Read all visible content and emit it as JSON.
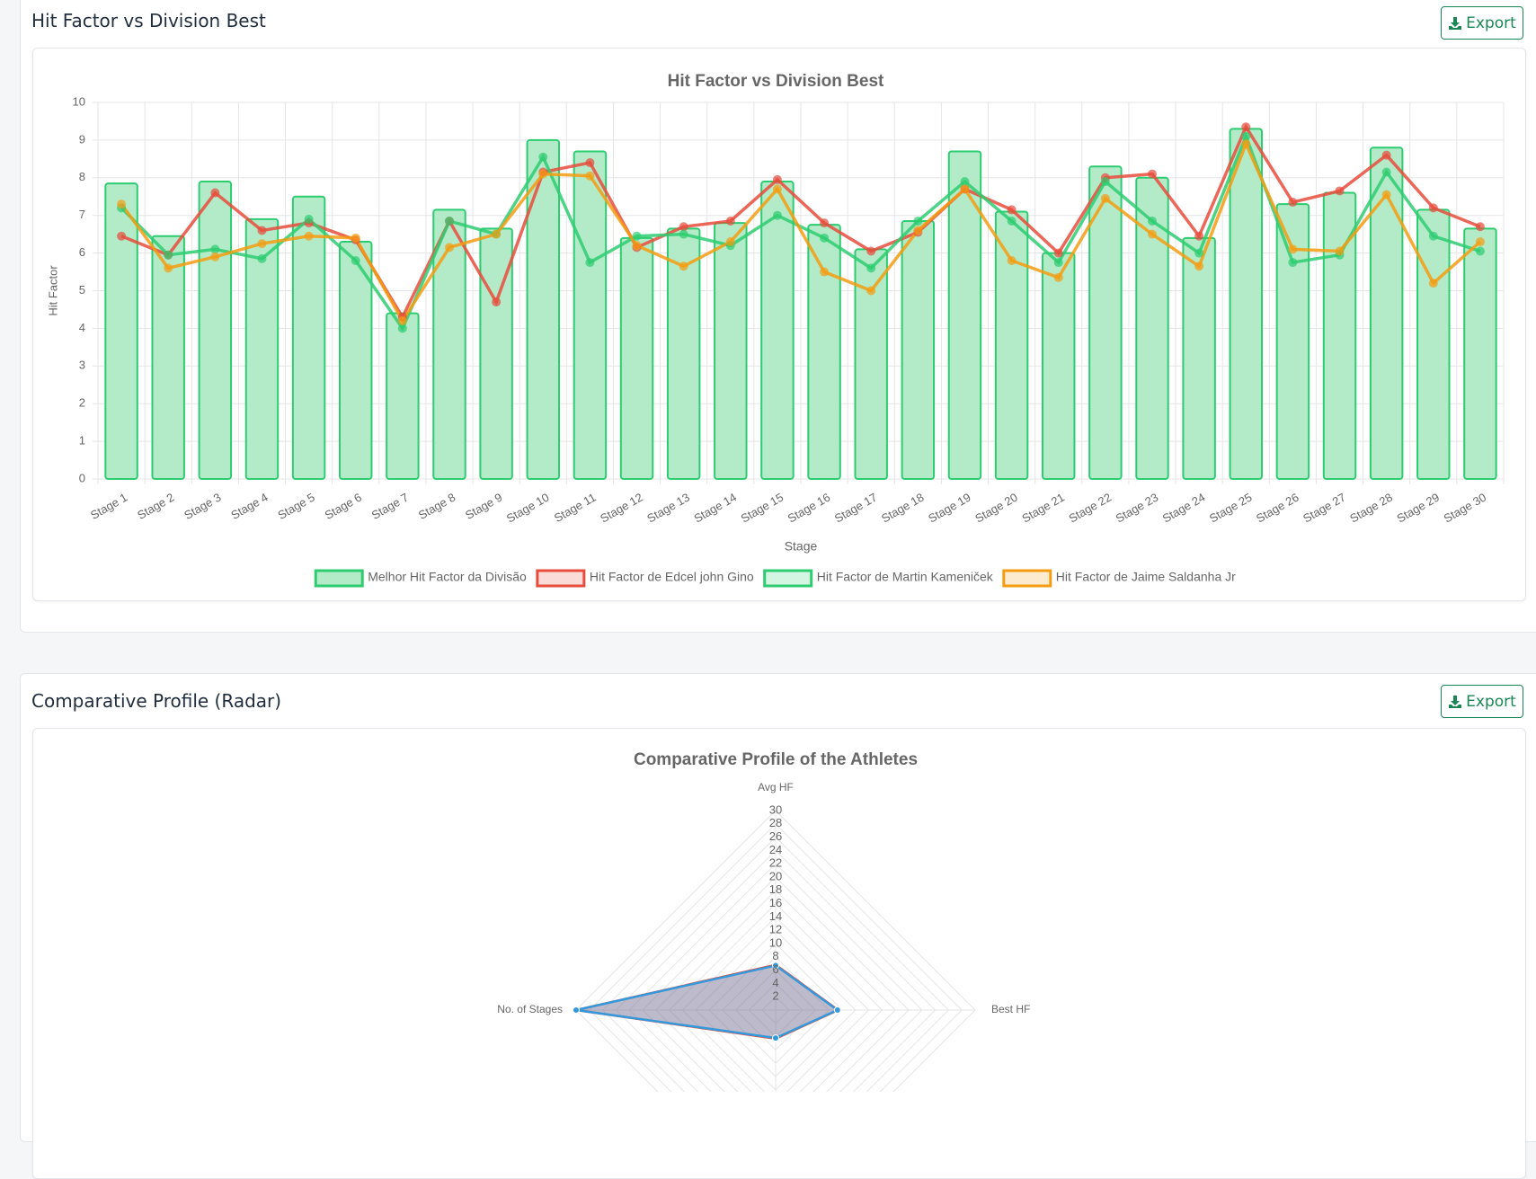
{
  "cards": [
    {
      "title": "Hit Factor vs Division Best",
      "export": "Export"
    },
    {
      "title": "Comparative Profile (Radar)",
      "export": "Export"
    }
  ],
  "chart_data": [
    {
      "type": "bar",
      "title": "Hit Factor vs Division Best",
      "x_label": "Stage",
      "y_label": "Hit Factor",
      "categories": [
        "Stage 1",
        "Stage 2",
        "Stage 3",
        "Stage 4",
        "Stage 5",
        "Stage 6",
        "Stage 7",
        "Stage 8",
        "Stage 9",
        "Stage 10",
        "Stage 11",
        "Stage 12",
        "Stage 13",
        "Stage 14",
        "Stage 15",
        "Stage 16",
        "Stage 17",
        "Stage 18",
        "Stage 19",
        "Stage 20",
        "Stage 21",
        "Stage 22",
        "Stage 23",
        "Stage 24",
        "Stage 25",
        "Stage 26",
        "Stage 27",
        "Stage 28",
        "Stage 29",
        "Stage 30"
      ],
      "series": [
        {
          "name": "Melhor Hit Factor da Divisão",
          "type": "bar",
          "color": "#2ecc71",
          "fill": "#b3ebc8",
          "values": [
            7.85,
            6.45,
            7.9,
            6.9,
            7.5,
            6.3,
            4.4,
            7.15,
            6.65,
            9.0,
            8.7,
            6.4,
            6.65,
            6.8,
            7.9,
            6.75,
            6.1,
            6.85,
            8.7,
            7.1,
            6.0,
            8.3,
            8.0,
            6.4,
            9.3,
            7.3,
            7.6,
            8.8,
            7.15,
            6.65
          ]
        },
        {
          "name": "Hit Factor de Edcel john Gino",
          "type": "line",
          "color": "#e74c3c",
          "fill": "#fadbd8",
          "values": [
            6.45,
            5.95,
            7.6,
            6.6,
            6.8,
            6.35,
            4.3,
            6.85,
            4.7,
            8.15,
            8.4,
            6.15,
            6.7,
            6.85,
            7.95,
            6.8,
            6.05,
            6.55,
            7.7,
            7.15,
            6.0,
            8.0,
            8.1,
            6.45,
            9.35,
            7.35,
            7.65,
            8.6,
            7.2,
            6.7
          ]
        },
        {
          "name": "Hit Factor de Martin Kameniček",
          "type": "line",
          "color": "#2ecc71",
          "fill": "#d5f5e3",
          "values": [
            7.2,
            5.95,
            6.1,
            5.85,
            6.9,
            5.8,
            4.0,
            6.85,
            6.5,
            8.55,
            5.75,
            6.45,
            6.5,
            6.2,
            7.0,
            6.4,
            5.6,
            6.85,
            7.9,
            6.85,
            5.75,
            7.9,
            6.85,
            6.0,
            9.1,
            5.75,
            5.95,
            8.15,
            6.45,
            6.05
          ]
        },
        {
          "name": "Hit Factor de Jaime Saldanha Jr",
          "type": "line",
          "color": "#f39c12",
          "fill": "#fdebd0",
          "values": [
            7.3,
            5.6,
            5.9,
            6.25,
            6.45,
            6.4,
            4.2,
            6.15,
            6.5,
            8.1,
            8.05,
            6.2,
            5.65,
            6.3,
            7.7,
            5.5,
            5.0,
            6.6,
            7.7,
            5.8,
            5.35,
            7.45,
            6.5,
            5.65,
            8.9,
            6.1,
            6.05,
            7.55,
            5.2,
            6.3
          ]
        }
      ],
      "ylim": [
        0,
        10
      ],
      "yticks": [
        0,
        1,
        2,
        3,
        4,
        5,
        6,
        7,
        8,
        9,
        10
      ],
      "grid": true,
      "legend": "bottom"
    },
    {
      "type": "radar",
      "title": "Comparative Profile of the Athletes",
      "categories": [
        "Avg HF",
        "Best HF",
        null,
        "No. of Stages"
      ],
      "series": [
        {
          "color": "#e74c3c",
          "values": [
            6.8,
            9.4,
            4.3,
            30
          ]
        },
        {
          "color": "#3498db",
          "values": [
            6.7,
            9.3,
            4.2,
            30
          ]
        }
      ],
      "rlim": [
        0,
        30
      ],
      "rticks": [
        2,
        4,
        6,
        8,
        10,
        12,
        14,
        16,
        18,
        20,
        22,
        24,
        26,
        28,
        30
      ],
      "grid": true
    }
  ]
}
